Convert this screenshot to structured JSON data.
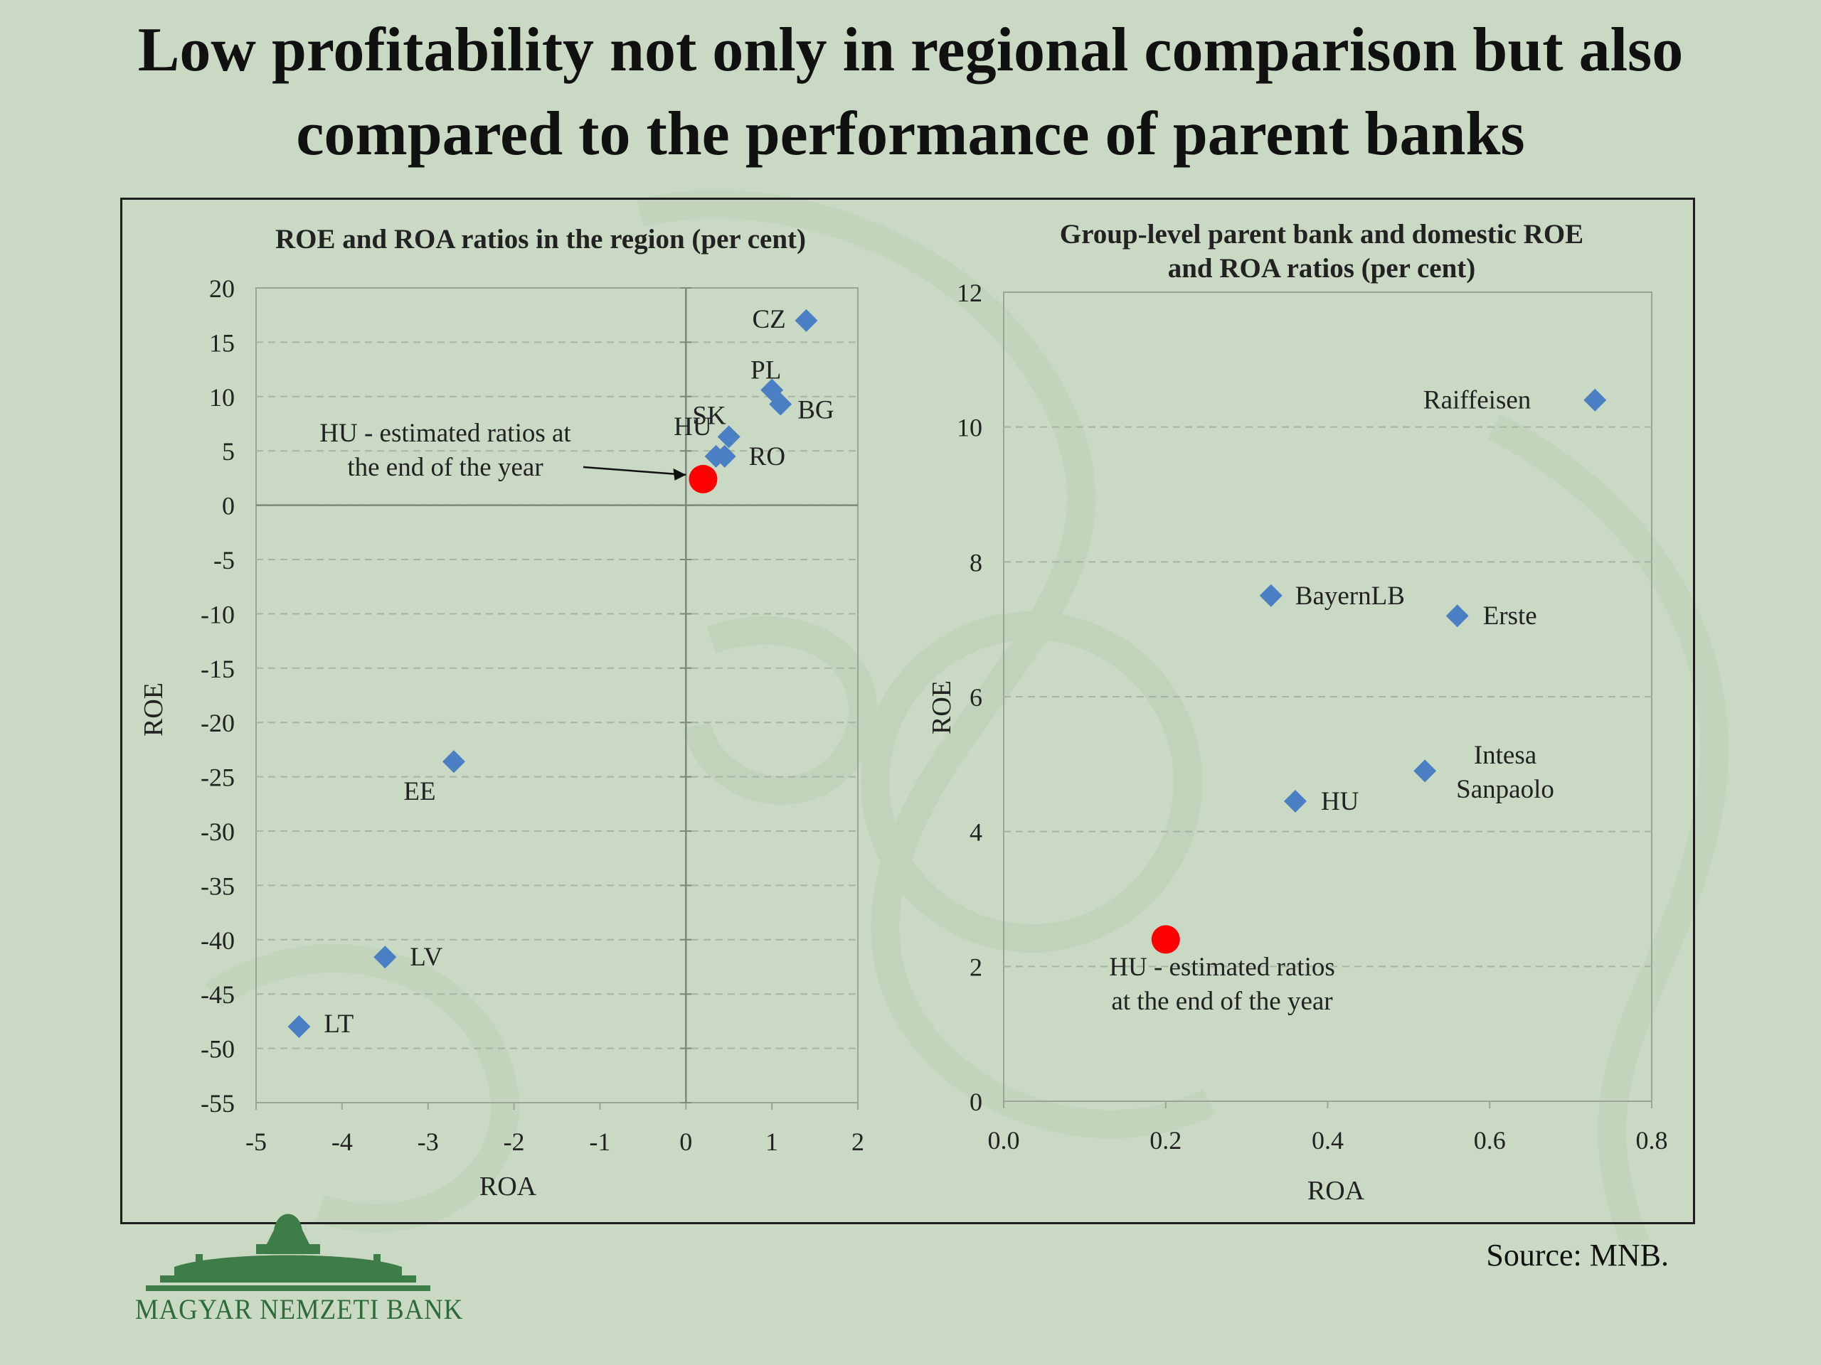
{
  "slide": {
    "title_line1": "Low profitability not only in regional comparison but also",
    "title_line2": "compared to the performance of parent banks",
    "source": "Source: MNB.",
    "logo_text": "MAGYAR NEMZETI BANK"
  },
  "colors": {
    "background": "#c9d9c3",
    "marker": "#4a7fc4",
    "highlight": "#ff0000",
    "gridline": "#a9b3a3",
    "text": "#111111"
  },
  "chart_data": [
    {
      "type": "scatter",
      "title": "ROE  and ROA ratios in the region  (per cent)",
      "xlabel": "ROA",
      "ylabel": "ROE",
      "xlim": [
        -5,
        2
      ],
      "ylim": [
        -55,
        20
      ],
      "xticks": [
        -5,
        -4,
        -3,
        -2,
        -1,
        0,
        1,
        2
      ],
      "yticks": [
        20,
        15,
        10,
        5,
        0,
        -5,
        -10,
        -15,
        -20,
        -25,
        -30,
        -35,
        -40,
        -45,
        -50,
        -55
      ],
      "grid": "horizontal dashed",
      "points": [
        {
          "label": "CZ",
          "x": 1.4,
          "y": 17.0
        },
        {
          "label": "PL",
          "x": 1.0,
          "y": 10.6
        },
        {
          "label": "BG",
          "x": 1.1,
          "y": 9.3
        },
        {
          "label": "SK",
          "x": 0.5,
          "y": 6.3
        },
        {
          "label": "HU",
          "x": 0.35,
          "y": 4.5
        },
        {
          "label": "RO",
          "x": 0.45,
          "y": 4.5
        },
        {
          "label": "EE",
          "x": -2.7,
          "y": -23.6
        },
        {
          "label": "LV",
          "x": -3.5,
          "y": -41.6
        },
        {
          "label": "LT",
          "x": -4.5,
          "y": -48.0
        }
      ],
      "highlight": {
        "x": 0.2,
        "y": 2.4,
        "label_line1": "HU - estimated ratios at",
        "label_line2": "the end of the year"
      }
    },
    {
      "type": "scatter",
      "title_line1": "Group-level parent bank  and domestic ROE",
      "title_line2": "and ROA ratios (per cent)",
      "xlabel": "ROA",
      "ylabel": "ROE",
      "xlim": [
        0,
        0.8
      ],
      "ylim": [
        0,
        12
      ],
      "xticks": [
        "0.0",
        "0.2",
        "0.4",
        "0.6",
        "0.8"
      ],
      "yticks": [
        12,
        10,
        8,
        6,
        4,
        2,
        0
      ],
      "grid": "horizontal dashed",
      "points": [
        {
          "label": "Raiffeisen",
          "x": 0.73,
          "y": 10.4
        },
        {
          "label": "BayernLB",
          "x": 0.33,
          "y": 7.5
        },
        {
          "label": "Erste",
          "x": 0.56,
          "y": 7.2
        },
        {
          "label": "Intesa Sanpaolo",
          "label_line1": "Intesa",
          "label_line2": "Sanpaolo",
          "x": 0.52,
          "y": 4.9
        },
        {
          "label": "HU",
          "x": 0.36,
          "y": 4.45
        }
      ],
      "highlight": {
        "x": 0.2,
        "y": 2.4,
        "label_line1": "HU - estimated ratios",
        "label_line2": "at the end of the year"
      }
    }
  ]
}
